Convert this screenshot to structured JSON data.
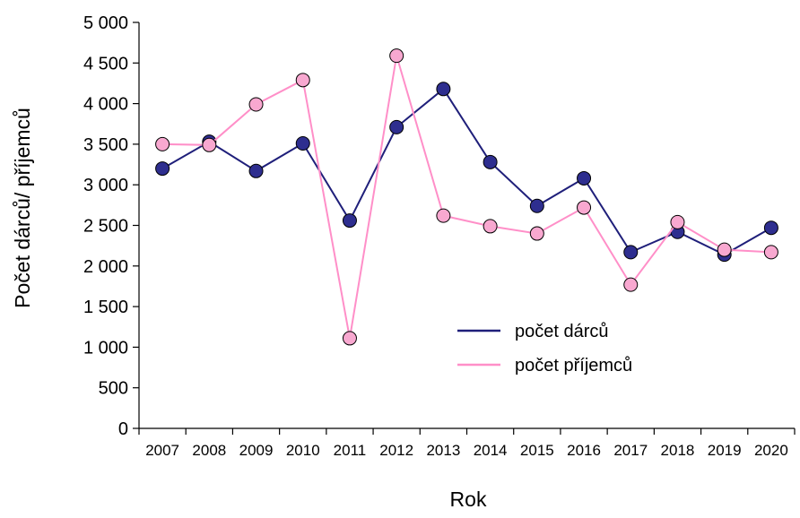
{
  "chart_data": {
    "type": "line",
    "xlabel": "Rok",
    "ylabel": "Počet dárců/ příjemců",
    "ylim": [
      0,
      5000
    ],
    "yticks": [
      0,
      500,
      1000,
      1500,
      2000,
      2500,
      3000,
      3500,
      4000,
      4500,
      5000
    ],
    "ytick_labels": [
      "0",
      "500",
      "1 000",
      "1 500",
      "2 000",
      "2 500",
      "3 000",
      "3 500",
      "4 000",
      "4 500",
      "5 000"
    ],
    "categories": [
      "2007",
      "2008",
      "2009",
      "2010",
      "2011",
      "2012",
      "2013",
      "2014",
      "2015",
      "2016",
      "2017",
      "2018",
      "2019",
      "2020"
    ],
    "grid": false,
    "legend": "center-right",
    "series": [
      {
        "name": "počet dárců",
        "color": "#1f1f7a",
        "marker_color": "#2e2e8f",
        "values": [
          3200,
          3530,
          3170,
          3510,
          2560,
          3710,
          4180,
          3280,
          2740,
          3080,
          2170,
          2420,
          2140,
          2470
        ]
      },
      {
        "name": "počet příjemců",
        "color": "#ff8fc8",
        "marker_color": "#f8a8d0",
        "values": [
          3500,
          3490,
          3990,
          4290,
          1110,
          4590,
          2620,
          2490,
          2400,
          2720,
          1770,
          2540,
          2200,
          2170
        ]
      }
    ]
  }
}
